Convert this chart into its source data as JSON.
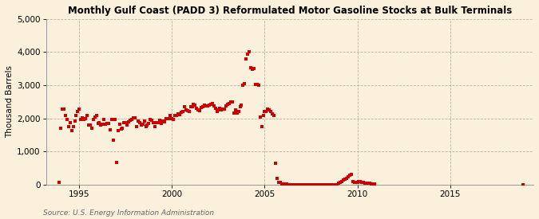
{
  "title": "Monthly Gulf Coast (PADD 3) Reformulated Motor Gasoline Stocks at Bulk Terminals",
  "ylabel": "Thousand Barrels",
  "source": "Source: U.S. Energy Information Administration",
  "background_color": "#faf0dc",
  "plot_bg_color": "#faf0dc",
  "marker_color": "#cc0000",
  "marker": "s",
  "markersize": 2.8,
  "ylim": [
    0,
    5000
  ],
  "yticks": [
    0,
    1000,
    2000,
    3000,
    4000,
    5000
  ],
  "xlim_start": 1993.2,
  "xlim_end": 2019.5,
  "xticks": [
    1995,
    2000,
    2005,
    2010,
    2015
  ],
  "data": [
    [
      1993.917,
      80
    ],
    [
      1994.0,
      1700
    ],
    [
      1994.083,
      2280
    ],
    [
      1994.167,
      2290
    ],
    [
      1994.25,
      2100
    ],
    [
      1994.333,
      1960
    ],
    [
      1994.417,
      1760
    ],
    [
      1994.5,
      1880
    ],
    [
      1994.583,
      1620
    ],
    [
      1994.667,
      1750
    ],
    [
      1994.75,
      1920
    ],
    [
      1994.833,
      2100
    ],
    [
      1994.917,
      2200
    ],
    [
      1995.0,
      2280
    ],
    [
      1995.083,
      1960
    ],
    [
      1995.167,
      2010
    ],
    [
      1995.25,
      1970
    ],
    [
      1995.333,
      2000
    ],
    [
      1995.417,
      2080
    ],
    [
      1995.5,
      1790
    ],
    [
      1995.583,
      1790
    ],
    [
      1995.667,
      1700
    ],
    [
      1995.75,
      1980
    ],
    [
      1995.833,
      2050
    ],
    [
      1995.917,
      2100
    ],
    [
      1996.0,
      1850
    ],
    [
      1996.083,
      1880
    ],
    [
      1996.167,
      1800
    ],
    [
      1996.25,
      1830
    ],
    [
      1996.333,
      1970
    ],
    [
      1996.417,
      1830
    ],
    [
      1996.5,
      1840
    ],
    [
      1996.583,
      1840
    ],
    [
      1996.667,
      1650
    ],
    [
      1996.75,
      1970
    ],
    [
      1996.833,
      1350
    ],
    [
      1996.917,
      1960
    ],
    [
      1997.0,
      680
    ],
    [
      1997.083,
      1630
    ],
    [
      1997.167,
      1820
    ],
    [
      1997.25,
      1690
    ],
    [
      1997.333,
      1700
    ],
    [
      1997.417,
      1860
    ],
    [
      1997.5,
      1880
    ],
    [
      1997.583,
      1790
    ],
    [
      1997.667,
      1900
    ],
    [
      1997.75,
      1940
    ],
    [
      1997.833,
      1970
    ],
    [
      1997.917,
      2020
    ],
    [
      1998.0,
      2010
    ],
    [
      1998.083,
      1750
    ],
    [
      1998.167,
      1910
    ],
    [
      1998.25,
      1870
    ],
    [
      1998.333,
      1810
    ],
    [
      1998.417,
      1830
    ],
    [
      1998.5,
      1910
    ],
    [
      1998.583,
      1760
    ],
    [
      1998.667,
      1790
    ],
    [
      1998.75,
      1850
    ],
    [
      1998.833,
      1960
    ],
    [
      1998.917,
      1950
    ],
    [
      1999.0,
      1870
    ],
    [
      1999.083,
      1760
    ],
    [
      1999.167,
      1870
    ],
    [
      1999.25,
      1860
    ],
    [
      1999.333,
      1940
    ],
    [
      1999.417,
      1840
    ],
    [
      1999.5,
      1930
    ],
    [
      1999.583,
      1900
    ],
    [
      1999.667,
      2000
    ],
    [
      1999.75,
      2000
    ],
    [
      1999.833,
      2000
    ],
    [
      1999.917,
      2080
    ],
    [
      2000.0,
      2000
    ],
    [
      2000.083,
      1970
    ],
    [
      2000.167,
      2080
    ],
    [
      2000.25,
      2100
    ],
    [
      2000.333,
      2130
    ],
    [
      2000.417,
      2120
    ],
    [
      2000.5,
      2180
    ],
    [
      2000.583,
      2200
    ],
    [
      2000.667,
      2350
    ],
    [
      2000.75,
      2250
    ],
    [
      2000.833,
      2240
    ],
    [
      2000.917,
      2200
    ],
    [
      2001.0,
      2350
    ],
    [
      2001.083,
      2350
    ],
    [
      2001.167,
      2420
    ],
    [
      2001.25,
      2400
    ],
    [
      2001.333,
      2300
    ],
    [
      2001.417,
      2250
    ],
    [
      2001.5,
      2230
    ],
    [
      2001.583,
      2320
    ],
    [
      2001.667,
      2350
    ],
    [
      2001.75,
      2400
    ],
    [
      2001.833,
      2380
    ],
    [
      2001.917,
      2380
    ],
    [
      2002.0,
      2400
    ],
    [
      2002.083,
      2430
    ],
    [
      2002.167,
      2450
    ],
    [
      2002.25,
      2380
    ],
    [
      2002.333,
      2300
    ],
    [
      2002.417,
      2200
    ],
    [
      2002.5,
      2250
    ],
    [
      2002.583,
      2300
    ],
    [
      2002.667,
      2250
    ],
    [
      2002.75,
      2280
    ],
    [
      2002.833,
      2280
    ],
    [
      2002.917,
      2380
    ],
    [
      2003.0,
      2420
    ],
    [
      2003.083,
      2450
    ],
    [
      2003.167,
      2500
    ],
    [
      2003.25,
      2500
    ],
    [
      2003.333,
      2150
    ],
    [
      2003.417,
      2250
    ],
    [
      2003.5,
      2150
    ],
    [
      2003.583,
      2200
    ],
    [
      2003.667,
      2350
    ],
    [
      2003.75,
      2400
    ],
    [
      2003.833,
      3000
    ],
    [
      2003.917,
      3050
    ],
    [
      2004.0,
      3800
    ],
    [
      2004.083,
      3950
    ],
    [
      2004.167,
      4020
    ],
    [
      2004.25,
      3530
    ],
    [
      2004.333,
      3480
    ],
    [
      2004.417,
      3500
    ],
    [
      2004.5,
      3030
    ],
    [
      2004.583,
      3020
    ],
    [
      2004.667,
      3000
    ],
    [
      2004.75,
      2050
    ],
    [
      2004.833,
      1750
    ],
    [
      2004.917,
      2100
    ],
    [
      2005.0,
      2200
    ],
    [
      2005.083,
      2220
    ],
    [
      2005.167,
      2270
    ],
    [
      2005.25,
      2250
    ],
    [
      2005.333,
      2200
    ],
    [
      2005.417,
      2130
    ],
    [
      2005.5,
      2100
    ],
    [
      2005.583,
      640
    ],
    [
      2005.667,
      200
    ],
    [
      2005.75,
      80
    ],
    [
      2005.833,
      60
    ],
    [
      2005.917,
      30
    ],
    [
      2006.0,
      20
    ],
    [
      2006.083,
      15
    ],
    [
      2006.167,
      10
    ],
    [
      2006.25,
      8
    ],
    [
      2006.333,
      8
    ],
    [
      2006.417,
      8
    ],
    [
      2006.5,
      8
    ],
    [
      2006.583,
      8
    ],
    [
      2006.667,
      8
    ],
    [
      2006.75,
      8
    ],
    [
      2006.833,
      8
    ],
    [
      2006.917,
      8
    ],
    [
      2007.0,
      8
    ],
    [
      2007.083,
      8
    ],
    [
      2007.167,
      8
    ],
    [
      2007.25,
      8
    ],
    [
      2007.333,
      8
    ],
    [
      2007.417,
      8
    ],
    [
      2007.5,
      8
    ],
    [
      2007.583,
      8
    ],
    [
      2007.667,
      8
    ],
    [
      2007.75,
      8
    ],
    [
      2007.833,
      8
    ],
    [
      2007.917,
      8
    ],
    [
      2008.0,
      8
    ],
    [
      2008.083,
      8
    ],
    [
      2008.167,
      8
    ],
    [
      2008.25,
      8
    ],
    [
      2008.333,
      8
    ],
    [
      2008.417,
      8
    ],
    [
      2008.5,
      8
    ],
    [
      2008.583,
      8
    ],
    [
      2008.667,
      8
    ],
    [
      2008.75,
      8
    ],
    [
      2008.833,
      8
    ],
    [
      2008.917,
      8
    ],
    [
      2009.0,
      50
    ],
    [
      2009.083,
      80
    ],
    [
      2009.167,
      100
    ],
    [
      2009.25,
      130
    ],
    [
      2009.333,
      160
    ],
    [
      2009.417,
      200
    ],
    [
      2009.5,
      230
    ],
    [
      2009.583,
      280
    ],
    [
      2009.667,
      300
    ],
    [
      2009.75,
      100
    ],
    [
      2009.833,
      70
    ],
    [
      2009.917,
      60
    ],
    [
      2010.0,
      80
    ],
    [
      2010.083,
      100
    ],
    [
      2010.167,
      90
    ],
    [
      2010.25,
      70
    ],
    [
      2010.333,
      60
    ],
    [
      2010.417,
      50
    ],
    [
      2010.5,
      45
    ],
    [
      2010.583,
      40
    ],
    [
      2010.667,
      35
    ],
    [
      2010.75,
      30
    ],
    [
      2010.833,
      30
    ],
    [
      2010.917,
      30
    ],
    [
      2018.917,
      8
    ]
  ]
}
